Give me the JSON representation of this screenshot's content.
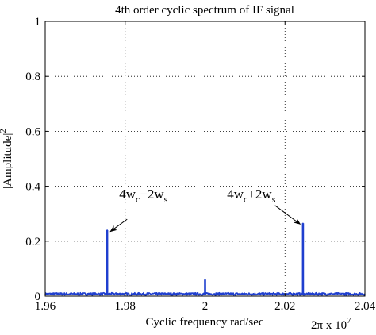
{
  "chart_data": {
    "type": "line",
    "title": "4th order cyclic spectrum of IF signal",
    "xlabel": "Cyclic frequency rad/sec",
    "ylabel": "|Amplitude|",
    "ylabel_superscript": "2",
    "x_multiplier": {
      "prefix": "2π  x 10",
      "exponent": "7"
    },
    "xlim": [
      1.96,
      2.04
    ],
    "ylim": [
      0,
      1
    ],
    "xticks": [
      1.96,
      1.98,
      2.0,
      2.02,
      2.04
    ],
    "xtick_labels": [
      "1.96",
      "1.98",
      "2",
      "2.02",
      "2.04"
    ],
    "yticks": [
      0,
      0.2,
      0.4,
      0.6,
      0.8,
      1
    ],
    "ytick_labels": [
      "0",
      "0.2",
      "0.4",
      "0.6",
      "0.8",
      "1"
    ],
    "grid": true,
    "line_color": "#1f3fcf",
    "noise_floor": 0.01,
    "peaks": [
      {
        "x": 1.9755,
        "y": 0.24
      },
      {
        "x": 2.0,
        "y": 0.06
      },
      {
        "x": 2.0245,
        "y": 0.265
      }
    ],
    "annotations": [
      {
        "label_main": "4w",
        "sub1": "c",
        "op": "−2w",
        "sub2": "s",
        "text_x": 1.9785,
        "text_y": 0.355,
        "arrow_from": [
          1.9805,
          0.28
        ],
        "arrow_to": [
          1.9763,
          0.235
        ]
      },
      {
        "label_main": "4w",
        "sub1": "c",
        "op": "+2w",
        "sub2": "s",
        "text_x": 2.0055,
        "text_y": 0.355,
        "arrow_from": [
          2.0175,
          0.33
        ],
        "arrow_to": [
          2.0238,
          0.262
        ]
      }
    ]
  }
}
